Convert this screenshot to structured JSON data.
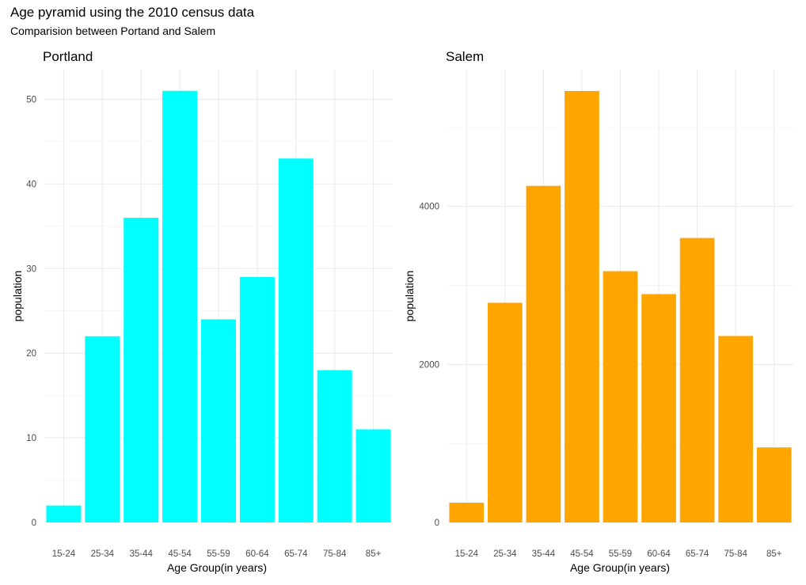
{
  "title": "Age pyramid using the 2010 census data",
  "subtitle": "Comparision between Portand and Salem",
  "chart_data": [
    {
      "type": "bar",
      "title": "Portland",
      "xlabel": "Age Group(in years)",
      "ylabel": "population",
      "categories": [
        "15-24",
        "25-34",
        "35-44",
        "45-54",
        "55-59",
        "60-64",
        "65-74",
        "75-84",
        "85+"
      ],
      "values": [
        2,
        22,
        36,
        51,
        24,
        29,
        43,
        18,
        11
      ],
      "y_ticks": [
        0,
        10,
        20,
        30,
        40,
        50
      ],
      "y_tick_labels": [
        "0",
        "10",
        "20",
        "30",
        "40",
        "50"
      ],
      "ylim": [
        0,
        53.5
      ],
      "grid": true,
      "color": "#00ffff"
    },
    {
      "type": "bar",
      "title": "Salem",
      "xlabel": "Age Group(in years)",
      "ylabel": "population",
      "categories": [
        "15-24",
        "25-34",
        "35-44",
        "45-54",
        "55-59",
        "60-64",
        "65-74",
        "75-84",
        "85+"
      ],
      "values": [
        250,
        2780,
        4260,
        5460,
        3180,
        2890,
        3600,
        2360,
        950
      ],
      "y_ticks": [
        0,
        2000,
        4000
      ],
      "y_tick_labels": [
        "0",
        "2000",
        "4000"
      ],
      "ylim": [
        0,
        5730
      ],
      "grid": true,
      "color": "#ffa500"
    }
  ]
}
